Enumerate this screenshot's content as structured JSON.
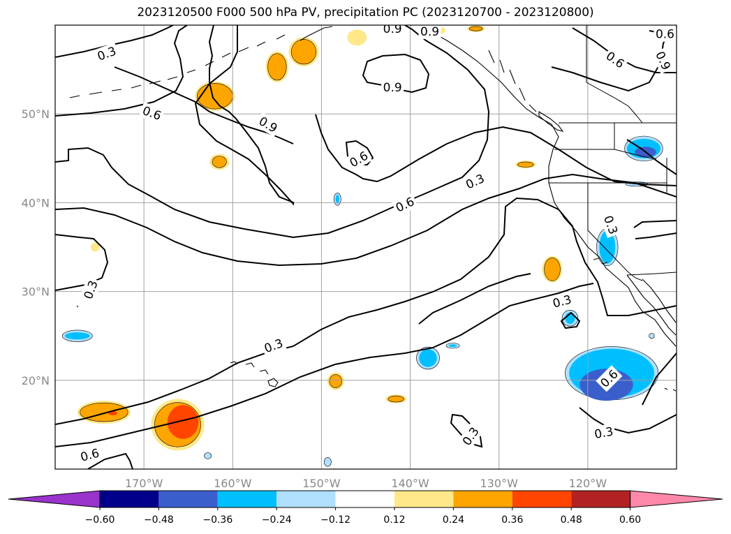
{
  "chart_data": {
    "type": "contour_map",
    "title": "2023120500 F000 500 hPa PV, precipitation PC (2023120700 - 2023120800)",
    "lon_range": [
      -180,
      -110
    ],
    "lat_range": [
      10,
      60
    ],
    "lon_ticks": [
      {
        "lon": -170,
        "label": "170°W"
      },
      {
        "lon": -160,
        "label": "160°W"
      },
      {
        "lon": -150,
        "label": "150°W"
      },
      {
        "lon": -140,
        "label": "140°W"
      },
      {
        "lon": -130,
        "label": "130°W"
      },
      {
        "lon": -120,
        "label": "120°W"
      }
    ],
    "lat_ticks": [
      {
        "lat": 20,
        "label": "20°N"
      },
      {
        "lat": 30,
        "label": "30°N"
      },
      {
        "lat": 40,
        "label": "40°N"
      },
      {
        "lat": 50,
        "label": "50°N"
      }
    ],
    "grid": true,
    "contour_levels": [
      0.3,
      0.6,
      0.9
    ],
    "contour_labels": [
      {
        "text": "0.3",
        "lon": -174.2,
        "lat": 56.8,
        "angle": -20
      },
      {
        "text": "0.9",
        "lon": -142.0,
        "lat": 59.6,
        "angle": 0
      },
      {
        "text": "0.9",
        "lon": -137.8,
        "lat": 59.3,
        "angle": 0
      },
      {
        "text": "0.9",
        "lon": -142.0,
        "lat": 53.0,
        "angle": 0
      },
      {
        "text": "0.6",
        "lon": -116.9,
        "lat": 56.1,
        "angle": 35
      },
      {
        "text": "0.9",
        "lon": -111.5,
        "lat": 56.0,
        "angle": 65
      },
      {
        "text": "0.6",
        "lon": -111.3,
        "lat": 59.0,
        "angle": 0
      },
      {
        "text": "0.6",
        "lon": -169.1,
        "lat": 50.1,
        "angle": 20
      },
      {
        "text": "0.9",
        "lon": -156.0,
        "lat": 48.8,
        "angle": 30
      },
      {
        "text": "0.6",
        "lon": -145.8,
        "lat": 44.9,
        "angle": -30
      },
      {
        "text": "0.3",
        "lon": -132.7,
        "lat": 42.4,
        "angle": -25
      },
      {
        "text": "0.6",
        "lon": -140.6,
        "lat": 39.8,
        "angle": -25
      },
      {
        "text": "0.3",
        "lon": -117.4,
        "lat": 37.5,
        "angle": 70
      },
      {
        "text": "0.3",
        "lon": -176.0,
        "lat": 30.2,
        "angle": -70
      },
      {
        "text": "0.3",
        "lon": -122.9,
        "lat": 28.9,
        "angle": -15
      },
      {
        "text": "0.3",
        "lon": -155.4,
        "lat": 23.9,
        "angle": -20
      },
      {
        "text": "0.6",
        "lon": -117.6,
        "lat": 20.2,
        "angle": -45
      },
      {
        "text": "0.3",
        "lon": -118.2,
        "lat": 14.1,
        "angle": -10
      },
      {
        "text": "0.6",
        "lon": -176.1,
        "lat": 11.6,
        "angle": -15
      },
      {
        "text": "0.3",
        "lon": -133.2,
        "lat": 13.7,
        "angle": -55
      }
    ],
    "colorbar": {
      "ticks": [
        "−0.60",
        "−0.48",
        "−0.36",
        "−0.24",
        "−0.12",
        "0.12",
        "0.24",
        "0.36",
        "0.48",
        "0.60"
      ],
      "bounds": [
        -0.6,
        -0.48,
        -0.36,
        -0.24,
        -0.12,
        0.12,
        0.24,
        0.36,
        0.48,
        0.6
      ],
      "colors": [
        "#9933cc",
        "#00008b",
        "#3a5fcd",
        "#00bfff",
        "#b0e0fe",
        "#ffffff",
        "#ffe88a",
        "#ffa500",
        "#ff4500",
        "#b22222",
        "#ff88aa"
      ],
      "extend": "both"
    },
    "precip_shading": [
      {
        "level": 0.12,
        "color": "#ffe88a",
        "cells": [
          [
            -161.5,
            44.6,
            2.2,
            1.8
          ],
          [
            -152.0,
            57.0,
            3.4,
            3.3
          ],
          [
            -146.0,
            58.6,
            2.2,
            1.8
          ],
          [
            -175.5,
            35.0,
            1.0,
            1.0
          ],
          [
            -124.0,
            32.5,
            2.3,
            3.0
          ],
          [
            -127.0,
            44.3,
            2.3,
            0.9
          ],
          [
            -148.4,
            19.9,
            1.9,
            2.0
          ],
          [
            -141.6,
            17.9,
            2.4,
            1.0
          ],
          [
            -166.2,
            15.0,
            6.0,
            5.8
          ],
          [
            -174.5,
            16.4,
            6.0,
            2.6
          ],
          [
            -132.6,
            59.6,
            2.0,
            0.8
          ],
          [
            -162.0,
            52.0,
            4.5,
            3.3
          ],
          [
            -155.0,
            55.3,
            2.6,
            3.5
          ],
          [
            -136.5,
            59.4,
            1.0,
            0.7
          ]
        ]
      },
      {
        "level": 0.24,
        "color": "#ffa500",
        "cells": [
          [
            -161.5,
            44.6,
            1.6,
            1.3
          ],
          [
            -152.0,
            57.0,
            2.8,
            2.8
          ],
          [
            -124.0,
            32.5,
            1.8,
            2.6
          ],
          [
            -127.0,
            44.3,
            1.8,
            0.6
          ],
          [
            -148.4,
            19.9,
            1.4,
            1.5
          ],
          [
            -141.6,
            17.9,
            1.8,
            0.7
          ],
          [
            -166.2,
            15.0,
            5.2,
            5.0
          ],
          [
            -174.5,
            16.4,
            5.4,
            2.1
          ],
          [
            -132.6,
            59.6,
            1.5,
            0.5
          ],
          [
            -162.0,
            52.0,
            4.0,
            2.9
          ],
          [
            -155.0,
            55.3,
            2.1,
            3.0
          ]
        ]
      },
      {
        "level": 0.36,
        "color": "#ff4500",
        "cells": [
          [
            -165.6,
            15.3,
            3.5,
            3.8
          ],
          [
            -173.5,
            16.3,
            1.0,
            0.5
          ]
        ]
      },
      {
        "level": -0.12,
        "color": "#b0e0fe",
        "cells": [
          [
            -117.8,
            35.0,
            2.4,
            4.2
          ],
          [
            -117.3,
            20.8,
            10.5,
            6.0
          ],
          [
            -138.0,
            22.5,
            2.6,
            2.5
          ],
          [
            -122.0,
            27.0,
            1.8,
            1.8
          ],
          [
            -135.2,
            23.9,
            1.5,
            0.6
          ],
          [
            -113.7,
            46.1,
            4.3,
            2.8
          ],
          [
            -114.5,
            42.1,
            2.5,
            0.5
          ],
          [
            -177.5,
            25.0,
            3.4,
            1.3
          ],
          [
            -149.3,
            10.8,
            0.8,
            1.0
          ],
          [
            -148.2,
            40.4,
            0.8,
            1.4
          ],
          [
            -162.8,
            11.5,
            0.8,
            0.7
          ],
          [
            -112.8,
            25.0,
            0.6,
            0.6
          ]
        ]
      },
      {
        "level": -0.24,
        "color": "#00bfff",
        "cells": [
          [
            -117.8,
            35.0,
            1.8,
            3.7
          ],
          [
            -117.3,
            20.8,
            9.6,
            5.5
          ],
          [
            -138.0,
            22.5,
            2.0,
            2.0
          ],
          [
            -122.0,
            27.0,
            1.1,
            1.3
          ],
          [
            -135.2,
            23.9,
            0.9,
            0.3
          ],
          [
            -113.7,
            46.1,
            3.8,
            2.2
          ],
          [
            -177.5,
            25.0,
            2.8,
            0.8
          ],
          [
            -148.2,
            40.4,
            0.4,
            1.0
          ]
        ]
      },
      {
        "level": -0.36,
        "color": "#3a5fcd",
        "cells": [
          [
            -117.9,
            19.5,
            6.0,
            3.6
          ],
          [
            -113.5,
            45.7,
            2.4,
            1.2
          ]
        ]
      }
    ]
  }
}
